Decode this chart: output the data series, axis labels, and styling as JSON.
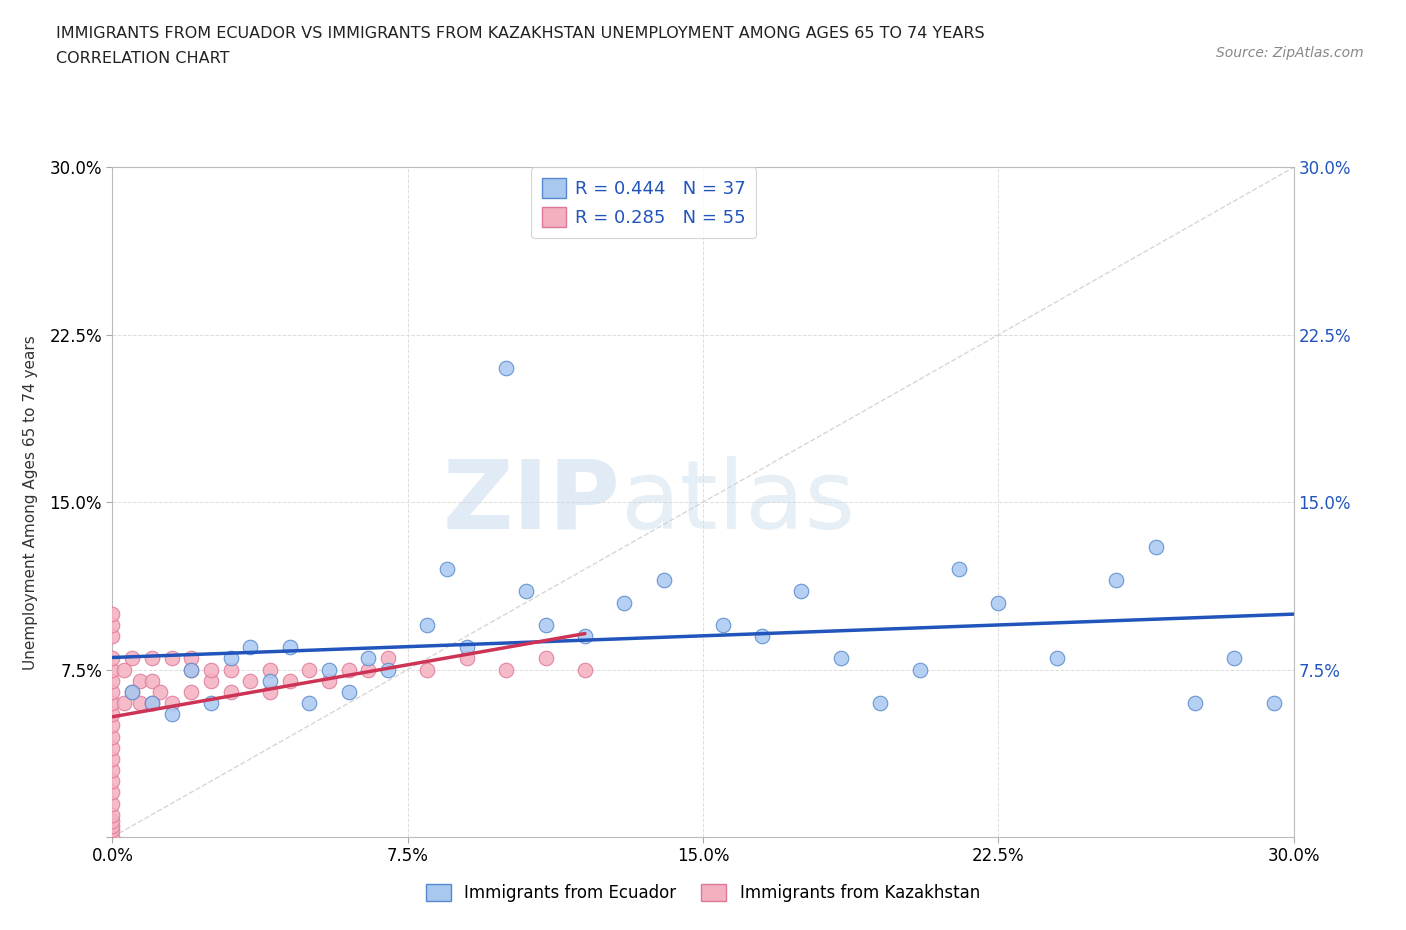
{
  "title_line1": "IMMIGRANTS FROM ECUADOR VS IMMIGRANTS FROM KAZAKHSTAN UNEMPLOYMENT AMONG AGES 65 TO 74 YEARS",
  "title_line2": "CORRELATION CHART",
  "source_text": "Source: ZipAtlas.com",
  "ylabel": "Unemployment Among Ages 65 to 74 years",
  "xlim": [
    0.0,
    0.3
  ],
  "ylim": [
    0.0,
    0.3
  ],
  "xticks": [
    0.0,
    0.075,
    0.15,
    0.225,
    0.3
  ],
  "yticks": [
    0.0,
    0.075,
    0.15,
    0.225,
    0.3
  ],
  "xticklabels": [
    "0.0%",
    "7.5%",
    "15.0%",
    "22.5%",
    "30.0%"
  ],
  "yticklabels_left": [
    "",
    "7.5%",
    "15.0%",
    "22.5%",
    "30.0%"
  ],
  "yticklabels_right": [
    "",
    "7.5%",
    "15.0%",
    "22.5%",
    "30.0%"
  ],
  "watermark_zip": "ZIP",
  "watermark_atlas": "atlas",
  "legend_r1": "R = 0.444",
  "legend_n1": "N = 37",
  "legend_r2": "R = 0.285",
  "legend_n2": "N = 55",
  "ecuador_color": "#a8c8f0",
  "ecuador_edge": "#5588cc",
  "kazakhstan_color": "#f5b0c0",
  "kazakhstan_edge": "#dd7799",
  "ecuador_line_color": "#2255bb",
  "kazakhstan_line_color": "#cc3355",
  "diag_line_color": "#cccccc",
  "ecuador_label": "Immigrants from Ecuador",
  "kazakhstan_label": "Immigrants from Kazakhstan",
  "legend_text_color": "#2255bb",
  "ecuador_scatter_x": [
    0.005,
    0.01,
    0.015,
    0.02,
    0.025,
    0.03,
    0.035,
    0.04,
    0.045,
    0.05,
    0.055,
    0.06,
    0.065,
    0.07,
    0.08,
    0.085,
    0.09,
    0.1,
    0.105,
    0.11,
    0.12,
    0.13,
    0.14,
    0.155,
    0.165,
    0.175,
    0.185,
    0.195,
    0.205,
    0.215,
    0.225,
    0.24,
    0.255,
    0.265,
    0.275,
    0.285,
    0.295
  ],
  "ecuador_scatter_y": [
    0.065,
    0.06,
    0.055,
    0.075,
    0.06,
    0.08,
    0.085,
    0.07,
    0.085,
    0.06,
    0.075,
    0.065,
    0.08,
    0.075,
    0.095,
    0.12,
    0.085,
    0.21,
    0.11,
    0.095,
    0.09,
    0.105,
    0.115,
    0.095,
    0.09,
    0.11,
    0.08,
    0.06,
    0.075,
    0.12,
    0.105,
    0.08,
    0.115,
    0.13,
    0.06,
    0.08,
    0.06
  ],
  "kazakhstan_scatter_x": [
    0.0,
    0.0,
    0.0,
    0.0,
    0.0,
    0.0,
    0.0,
    0.0,
    0.0,
    0.0,
    0.0,
    0.0,
    0.0,
    0.0,
    0.0,
    0.0,
    0.0,
    0.0,
    0.0,
    0.0,
    0.0,
    0.0,
    0.003,
    0.003,
    0.005,
    0.005,
    0.007,
    0.007,
    0.01,
    0.01,
    0.01,
    0.012,
    0.015,
    0.015,
    0.02,
    0.02,
    0.02,
    0.025,
    0.025,
    0.03,
    0.03,
    0.035,
    0.04,
    0.04,
    0.045,
    0.05,
    0.055,
    0.06,
    0.065,
    0.07,
    0.08,
    0.09,
    0.1,
    0.11,
    0.12
  ],
  "kazakhstan_scatter_y": [
    0.0,
    0.003,
    0.005,
    0.007,
    0.01,
    0.015,
    0.02,
    0.025,
    0.03,
    0.035,
    0.04,
    0.045,
    0.05,
    0.055,
    0.06,
    0.065,
    0.07,
    0.075,
    0.08,
    0.09,
    0.095,
    0.1,
    0.06,
    0.075,
    0.065,
    0.08,
    0.06,
    0.07,
    0.06,
    0.07,
    0.08,
    0.065,
    0.06,
    0.08,
    0.065,
    0.075,
    0.08,
    0.07,
    0.075,
    0.065,
    0.075,
    0.07,
    0.065,
    0.075,
    0.07,
    0.075,
    0.07,
    0.075,
    0.075,
    0.08,
    0.075,
    0.08,
    0.075,
    0.08,
    0.075
  ]
}
